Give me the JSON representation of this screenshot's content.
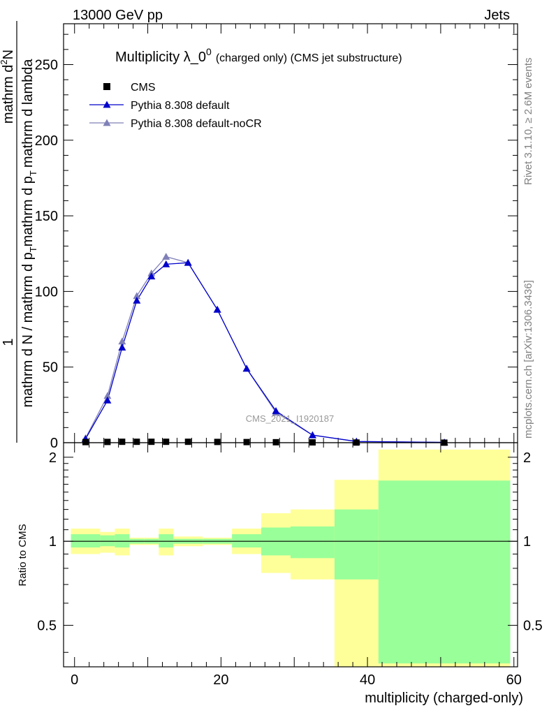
{
  "header": {
    "left": "13000 GeV pp",
    "right": "Jets"
  },
  "side_labels": {
    "rivet": "Rivet 3.1.10, ≥ 2.6M events",
    "mcplots": "mcplots.cern.ch [arXiv:1306.3436]"
  },
  "chart_data": [
    {
      "type": "line",
      "title": "Multiplicity λ_0",
      "title_superscript": "0",
      "title_suffix": "(charged only) (CMS jet substructure)",
      "watermark": "CMS_2021_I1920187",
      "ylabel_parts": {
        "numerator": "1",
        "denominator": "mathrm d N / mathrm d p",
        "denominator_sub": "T",
        "denominator_tail": "mathrm d p",
        "denominator_tail_sub": "T",
        "denominator_end": "mathrm d lambda",
        "numerator2": "mathrm d",
        "numerator2_sup": "2",
        "numerator2_end": "N"
      },
      "ylabel_numerator": "1",
      "ylabel_den_a": "mathrm d N / mathrm d p",
      "ylabel_den_a_sub": "T",
      "ylabel_den_b": "mathrm d p",
      "ylabel_den_b_sub": "T",
      "ylabel_den_c": "mathrm d lambda",
      "ylabel_num_b": "mathrm d",
      "ylabel_num_b_sup": "2",
      "ylabel_num_b_end": "N",
      "xlim": [
        -1.5,
        60.5
      ],
      "ylim": [
        0,
        277
      ],
      "yticks": [
        0,
        50,
        100,
        150,
        200,
        250
      ],
      "legend_position": "top-left",
      "series": [
        {
          "name": "CMS",
          "marker": "square",
          "color": "#000000",
          "x": [
            1.5,
            4.5,
            6.5,
            8.5,
            10.5,
            12.5,
            15.5,
            19.5,
            23.5,
            27.5,
            32.5,
            38.5,
            50.5
          ],
          "y": [
            0.4,
            0.5,
            0.6,
            0.6,
            0.6,
            0.6,
            0.6,
            0.5,
            0.4,
            0.3,
            0.2,
            0.1,
            0.02
          ]
        },
        {
          "name": "Pythia 8.308 default",
          "marker": "triangle",
          "color": "#0000cc",
          "x": [
            1.5,
            4.5,
            6.5,
            8.5,
            10.5,
            12.5,
            15.5,
            19.5,
            23.5,
            27.5,
            32.5,
            38.5,
            50.5
          ],
          "y": [
            2.5,
            28,
            63,
            94,
            110,
            118,
            119,
            88,
            49,
            21,
            5,
            0.8,
            0.2
          ]
        },
        {
          "name": "Pythia 8.308 default-noCR",
          "marker": "triangle",
          "color": "#8080b8",
          "x": [
            1.5,
            4.5,
            6.5,
            8.5,
            10.5,
            12.5,
            15.5,
            19.5,
            23.5,
            27.5,
            32.5,
            38.5,
            50.5
          ],
          "y": [
            3,
            31,
            67,
            97,
            112,
            123,
            119,
            88,
            49,
            20,
            5,
            0.8,
            0.2
          ]
        }
      ]
    },
    {
      "type": "area",
      "ylabel": "Ratio to CMS",
      "xlabel": "multiplicity (charged-only)",
      "xlim": [
        -1.5,
        60.5
      ],
      "ylim": [
        0.355,
        2.255
      ],
      "yscale": "log",
      "xticks": [
        0,
        20,
        40,
        60
      ],
      "yticks": [
        0.5,
        1,
        2
      ],
      "reference_line": 1,
      "bins": [
        {
          "x0": -0.5,
          "x1": 3.5,
          "yellow": [
            0.9,
            1.11
          ],
          "green": [
            0.95,
            1.06
          ]
        },
        {
          "x0": 3.5,
          "x1": 5.5,
          "yellow": [
            0.91,
            1.08
          ],
          "green": [
            0.96,
            1.05
          ]
        },
        {
          "x0": 5.5,
          "x1": 7.5,
          "yellow": [
            0.89,
            1.11
          ],
          "green": [
            0.95,
            1.06
          ]
        },
        {
          "x0": 7.5,
          "x1": 9.5,
          "yellow": [
            0.97,
            1.03
          ],
          "green": [
            0.98,
            1.02
          ]
        },
        {
          "x0": 9.5,
          "x1": 11.5,
          "yellow": [
            0.97,
            1.03
          ],
          "green": [
            0.98,
            1.02
          ]
        },
        {
          "x0": 11.5,
          "x1": 13.5,
          "yellow": [
            0.89,
            1.11
          ],
          "green": [
            0.95,
            1.06
          ]
        },
        {
          "x0": 13.5,
          "x1": 17.5,
          "yellow": [
            0.96,
            1.04
          ],
          "green": [
            0.98,
            1.02
          ]
        },
        {
          "x0": 17.5,
          "x1": 21.5,
          "yellow": [
            0.97,
            1.03
          ],
          "green": [
            0.98,
            1.02
          ]
        },
        {
          "x0": 21.5,
          "x1": 25.5,
          "yellow": [
            0.9,
            1.11
          ],
          "green": [
            0.95,
            1.06
          ]
        },
        {
          "x0": 25.5,
          "x1": 29.5,
          "yellow": [
            0.77,
            1.26
          ],
          "green": [
            0.89,
            1.12
          ]
        },
        {
          "x0": 29.5,
          "x1": 35.5,
          "yellow": [
            0.73,
            1.3
          ],
          "green": [
            0.87,
            1.13
          ]
        },
        {
          "x0": 35.5,
          "x1": 41.5,
          "yellow": [
            0.355,
            1.66
          ],
          "green": [
            0.73,
            1.3
          ]
        },
        {
          "x0": 41.5,
          "x1": 59.5,
          "yellow": [
            0.355,
            2.13
          ],
          "green": [
            0.365,
            1.65
          ]
        }
      ]
    }
  ],
  "colors": {
    "yellow_band": "#ffff99",
    "green_band": "#99ff99",
    "axis": "#000000",
    "side_text": "#808080"
  }
}
